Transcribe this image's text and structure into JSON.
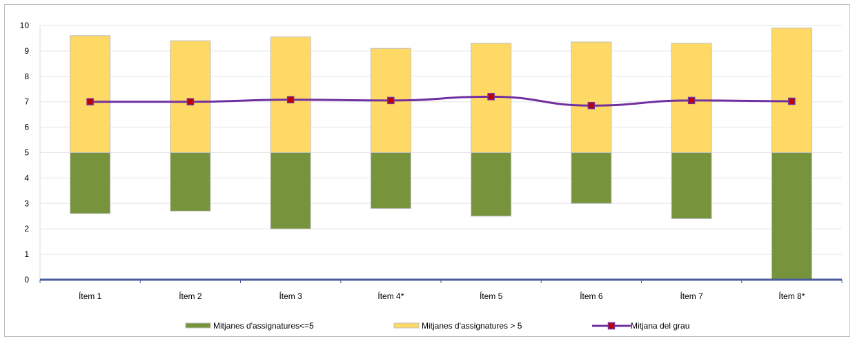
{
  "chart_data": {
    "type": "bar",
    "categories": [
      "Ítem 1",
      "Ítem 2",
      "Ítem 3",
      "Ítem 4*",
      "Ítem 5",
      "Ítem 6",
      "Ítem 7",
      "Ítem 8*"
    ],
    "series": [
      {
        "name": "Mitjanes d'assignatures<=5",
        "kind": "floating-bar",
        "color": "#77933c",
        "low": [
          2.6,
          2.7,
          2.0,
          2.8,
          2.5,
          3.0,
          2.4,
          0.0
        ],
        "high": [
          5,
          5,
          5,
          5,
          5,
          5,
          5,
          5
        ]
      },
      {
        "name": "Mitjanes d'assignatures > 5",
        "kind": "floating-bar",
        "color": "#ffd966",
        "low": [
          5,
          5,
          5,
          5,
          5,
          5,
          5,
          5
        ],
        "high": [
          9.6,
          9.4,
          9.55,
          9.1,
          9.3,
          9.35,
          9.3,
          9.9
        ]
      },
      {
        "name": "Mitjana del grau",
        "kind": "line",
        "color": "#7030a0",
        "marker_color": "#c00000",
        "values": [
          7.0,
          7.0,
          7.08,
          7.05,
          7.2,
          6.85,
          7.05,
          7.02
        ]
      }
    ],
    "ylim": [
      0,
      10
    ],
    "yticks": [
      "0",
      "1",
      "2",
      "3",
      "4",
      "5",
      "6",
      "7",
      "8",
      "9",
      "10"
    ],
    "grid": true,
    "legend_position": "bottom",
    "title": "",
    "xlabel": "",
    "ylabel": ""
  }
}
